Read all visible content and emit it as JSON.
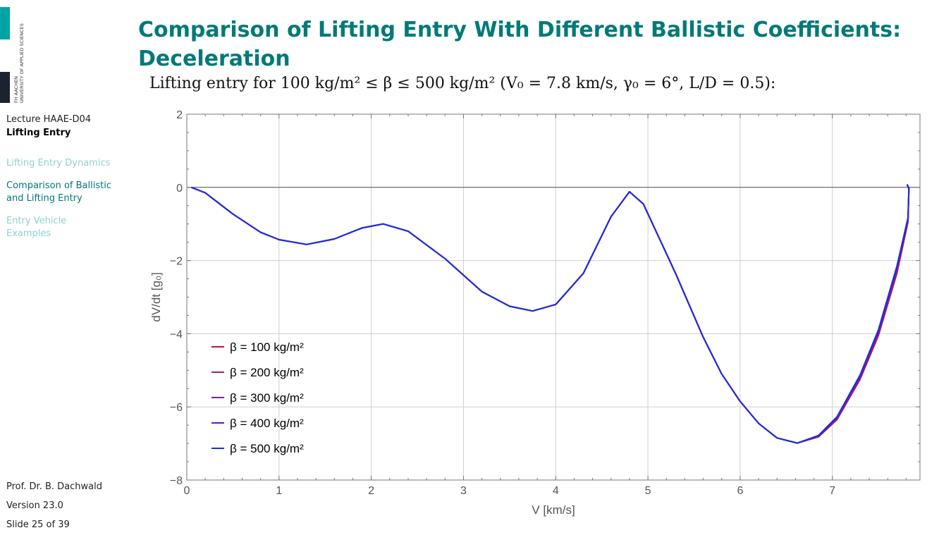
{
  "logo": {
    "line1": "FH AACHEN",
    "line2": "UNIVERSITY OF APPLIED SCIENCES"
  },
  "sidebar": {
    "lecture": "Lecture HAAE-D04",
    "topic": "Lifting Entry",
    "items": [
      {
        "label": "Lifting Entry Dynamics",
        "state": "inactive"
      },
      {
        "label": "Comparison of Ballistic and Lifting Entry",
        "state": "active"
      },
      {
        "label": "Entry Vehicle Examples",
        "state": "inactive"
      }
    ]
  },
  "footer": {
    "author": "Prof. Dr. B. Dachwald",
    "version": "Version 23.0",
    "slide": "Slide 25 of 39"
  },
  "slide": {
    "title": "Comparison of Lifting Entry With Different Ballistic Coefficients: Deceleration",
    "subtitle": "Lifting entry for 100 kg/m² ≤ β ≤ 500 kg/m² (V₀ = 7.8 km/s, γ₀ = 6°, L/D = 0.5):"
  },
  "colors": {
    "title": "#007a78",
    "accent_teal": "#00a3a3",
    "sidebar_active": "#00777a",
    "sidebar_inactive": "#8fd0d0"
  },
  "chart_data": {
    "type": "line",
    "xlabel": "V [km/s]",
    "ylabel": "dV/dt [g₀]",
    "xlim": [
      0,
      7.95
    ],
    "ylim": [
      -8,
      2
    ],
    "xticks": [
      0,
      1,
      2,
      3,
      4,
      5,
      6,
      7
    ],
    "yticks": [
      -8,
      -6,
      -4,
      -2,
      0,
      2
    ],
    "grid": true,
    "legend_position": "lower-left",
    "series": [
      {
        "name": "β = 100 kg/m²",
        "color": "#c8103c",
        "x": [
          0.05,
          0.2,
          0.5,
          0.8,
          1.0,
          1.3,
          1.6,
          1.9,
          2.13,
          2.4,
          2.8,
          3.2,
          3.5,
          3.75,
          4.0,
          4.3,
          4.6,
          4.8,
          4.95,
          5.3,
          5.6,
          5.8,
          6.0,
          6.2,
          6.4,
          6.62,
          6.85,
          7.05,
          7.3,
          7.5,
          7.7,
          7.82,
          7.83,
          7.81
        ],
        "y": [
          0.0,
          -0.15,
          -0.73,
          -1.23,
          -1.43,
          -1.56,
          -1.41,
          -1.11,
          -1.0,
          -1.2,
          -1.95,
          -2.85,
          -3.25,
          -3.38,
          -3.2,
          -2.35,
          -0.8,
          -0.12,
          -0.45,
          -2.35,
          -4.1,
          -5.1,
          -5.85,
          -6.45,
          -6.85,
          -6.99,
          -6.82,
          -6.35,
          -5.25,
          -4.05,
          -2.35,
          -0.95,
          -0.05,
          0.07
        ]
      },
      {
        "name": "β = 200 kg/m²",
        "color": "#a01f74",
        "x": [
          0.05,
          0.2,
          0.5,
          0.8,
          1.0,
          1.3,
          1.6,
          1.9,
          2.13,
          2.4,
          2.8,
          3.2,
          3.5,
          3.75,
          4.0,
          4.3,
          4.6,
          4.8,
          4.95,
          5.3,
          5.6,
          5.8,
          6.0,
          6.2,
          6.4,
          6.62,
          6.85,
          7.05,
          7.3,
          7.5,
          7.7,
          7.82,
          7.83,
          7.81
        ],
        "y": [
          0.0,
          -0.15,
          -0.73,
          -1.23,
          -1.43,
          -1.56,
          -1.41,
          -1.11,
          -1.0,
          -1.2,
          -1.95,
          -2.85,
          -3.25,
          -3.38,
          -3.2,
          -2.35,
          -0.8,
          -0.12,
          -0.45,
          -2.35,
          -4.1,
          -5.1,
          -5.85,
          -6.45,
          -6.85,
          -6.99,
          -6.81,
          -6.33,
          -5.22,
          -4.01,
          -2.3,
          -0.92,
          -0.04,
          0.07
        ]
      },
      {
        "name": "β = 300 kg/m²",
        "color": "#7a1fa6",
        "x": [
          0.05,
          0.2,
          0.5,
          0.8,
          1.0,
          1.3,
          1.6,
          1.9,
          2.13,
          2.4,
          2.8,
          3.2,
          3.5,
          3.75,
          4.0,
          4.3,
          4.6,
          4.8,
          4.95,
          5.3,
          5.6,
          5.8,
          6.0,
          6.2,
          6.4,
          6.62,
          6.85,
          7.05,
          7.3,
          7.5,
          7.7,
          7.82,
          7.83,
          7.81
        ],
        "y": [
          0.0,
          -0.15,
          -0.73,
          -1.23,
          -1.43,
          -1.56,
          -1.41,
          -1.11,
          -1.0,
          -1.2,
          -1.95,
          -2.85,
          -3.25,
          -3.38,
          -3.2,
          -2.35,
          -0.8,
          -0.12,
          -0.45,
          -2.35,
          -4.1,
          -5.1,
          -5.85,
          -6.45,
          -6.85,
          -6.99,
          -6.8,
          -6.31,
          -5.19,
          -3.97,
          -2.25,
          -0.89,
          -0.03,
          0.08
        ]
      },
      {
        "name": "β = 400 kg/m²",
        "color": "#4a1fc8",
        "x": [
          0.05,
          0.2,
          0.5,
          0.8,
          1.0,
          1.3,
          1.6,
          1.9,
          2.13,
          2.4,
          2.8,
          3.2,
          3.5,
          3.75,
          4.0,
          4.3,
          4.6,
          4.8,
          4.95,
          5.3,
          5.6,
          5.8,
          6.0,
          6.2,
          6.4,
          6.62,
          6.85,
          7.05,
          7.3,
          7.5,
          7.7,
          7.82,
          7.83,
          7.81
        ],
        "y": [
          0.0,
          -0.15,
          -0.73,
          -1.23,
          -1.43,
          -1.56,
          -1.41,
          -1.11,
          -1.0,
          -1.2,
          -1.95,
          -2.85,
          -3.25,
          -3.38,
          -3.2,
          -2.35,
          -0.8,
          -0.12,
          -0.45,
          -2.35,
          -4.1,
          -5.1,
          -5.85,
          -6.45,
          -6.85,
          -6.99,
          -6.79,
          -6.29,
          -5.16,
          -3.93,
          -2.2,
          -0.86,
          -0.02,
          0.08
        ]
      },
      {
        "name": "β = 500 kg/m²",
        "color": "#1a2ee0",
        "x": [
          0.05,
          0.2,
          0.5,
          0.8,
          1.0,
          1.3,
          1.6,
          1.9,
          2.13,
          2.4,
          2.8,
          3.2,
          3.5,
          3.75,
          4.0,
          4.3,
          4.6,
          4.8,
          4.95,
          5.3,
          5.6,
          5.8,
          6.0,
          6.2,
          6.4,
          6.62,
          6.85,
          7.05,
          7.3,
          7.5,
          7.7,
          7.82,
          7.83,
          7.81
        ],
        "y": [
          0.0,
          -0.15,
          -0.73,
          -1.23,
          -1.43,
          -1.56,
          -1.41,
          -1.11,
          -1.0,
          -1.2,
          -1.95,
          -2.85,
          -3.25,
          -3.38,
          -3.2,
          -2.35,
          -0.8,
          -0.12,
          -0.45,
          -2.35,
          -4.1,
          -5.1,
          -5.85,
          -6.45,
          -6.85,
          -6.99,
          -6.78,
          -6.27,
          -5.13,
          -3.89,
          -2.15,
          -0.83,
          -0.01,
          0.08
        ]
      }
    ]
  }
}
